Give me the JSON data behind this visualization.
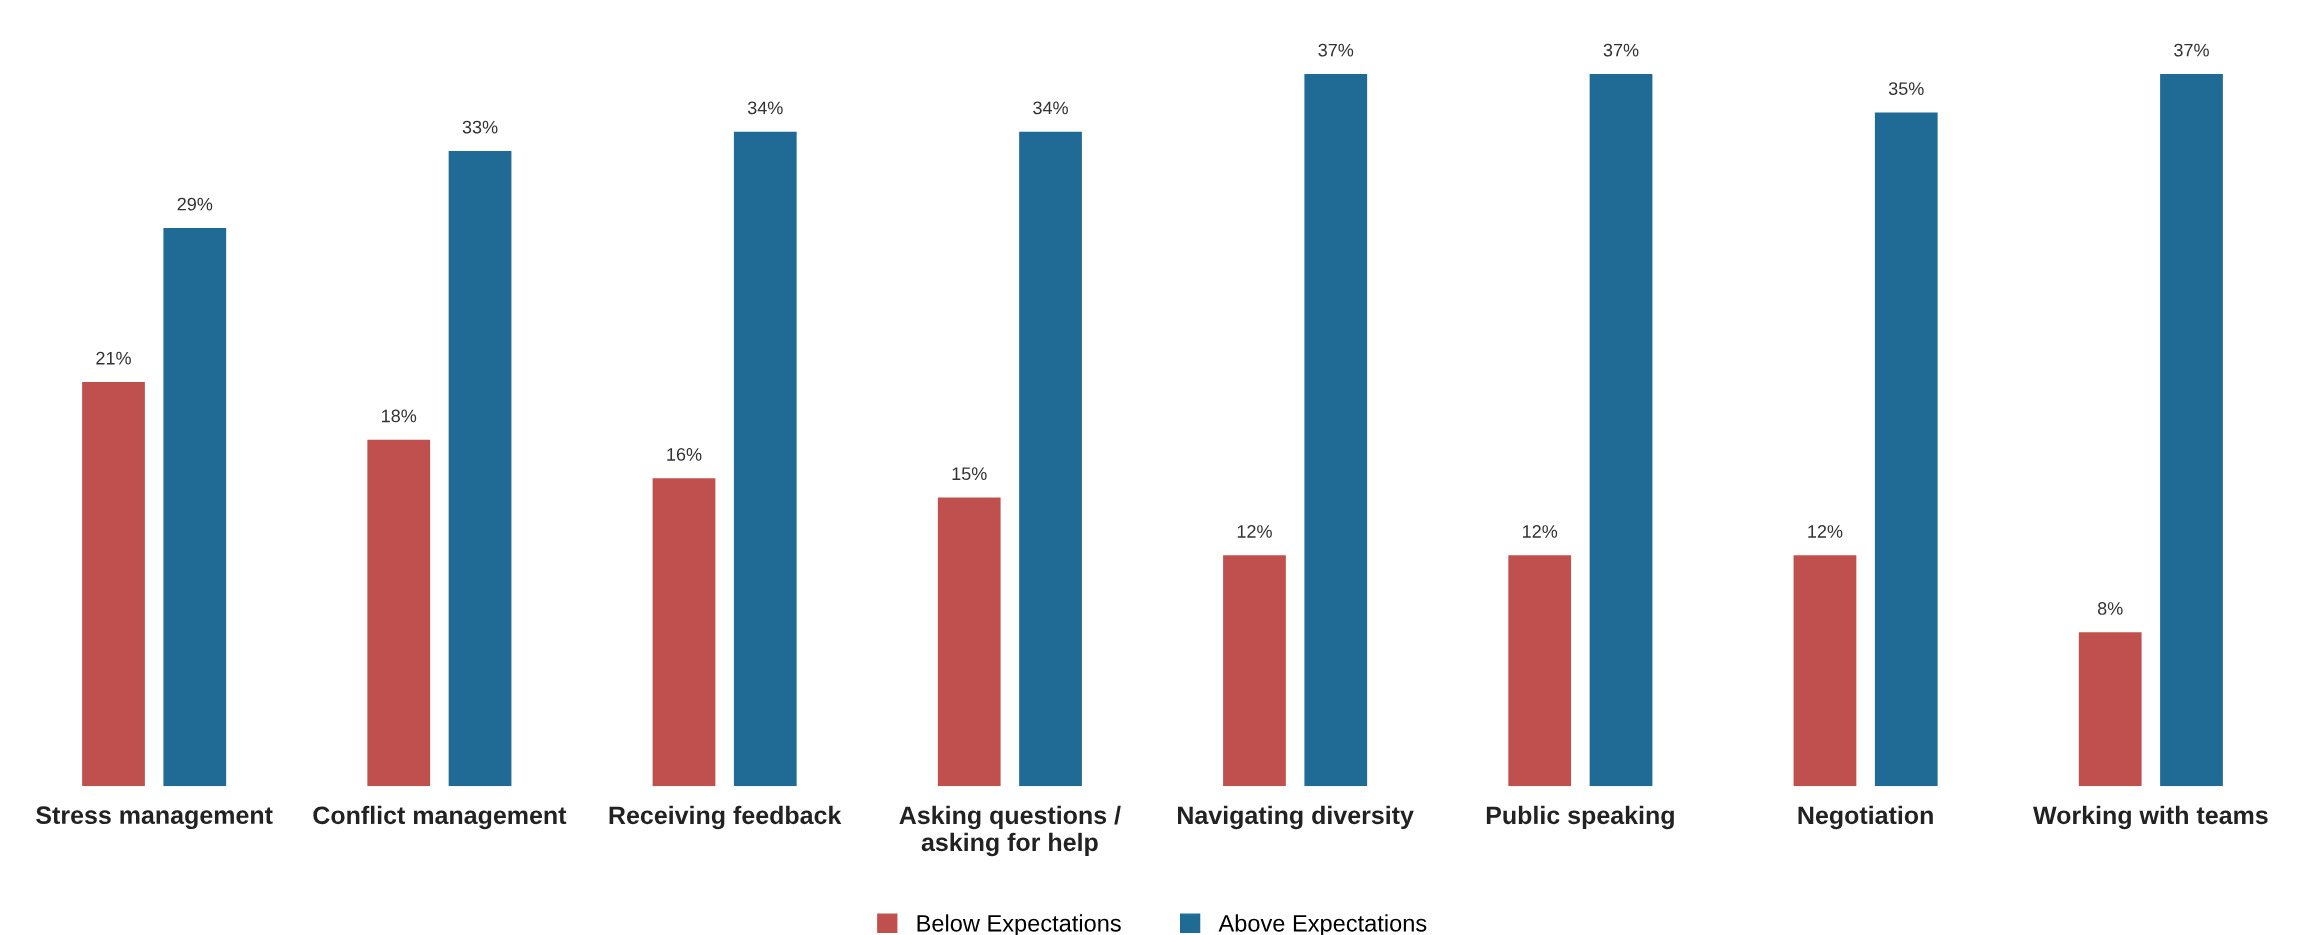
{
  "chart_data": {
    "type": "bar",
    "categories": [
      "Stress management",
      "Conflict management",
      "Receiving feedback",
      "Asking questions /\nasking for help",
      "Navigating diversity",
      "Public speaking",
      "Negotiation",
      "Working with teams"
    ],
    "series": [
      {
        "name": "Below Expectations",
        "color": "#c0504d",
        "values": [
          21,
          18,
          16,
          15,
          12,
          12,
          12,
          8
        ],
        "value_labels": [
          "21%",
          "18%",
          "16%",
          "15%",
          "12%",
          "12%",
          "12%",
          "8%"
        ]
      },
      {
        "name": "Above Expectations",
        "color": "#1f6b96",
        "values": [
          29,
          33,
          34,
          34,
          37,
          37,
          35,
          37
        ],
        "value_labels": [
          "29%",
          "33%",
          "34%",
          "34%",
          "37%",
          "37%",
          "35%",
          "37%"
        ]
      }
    ],
    "legend": "bottom",
    "grid": false
  }
}
